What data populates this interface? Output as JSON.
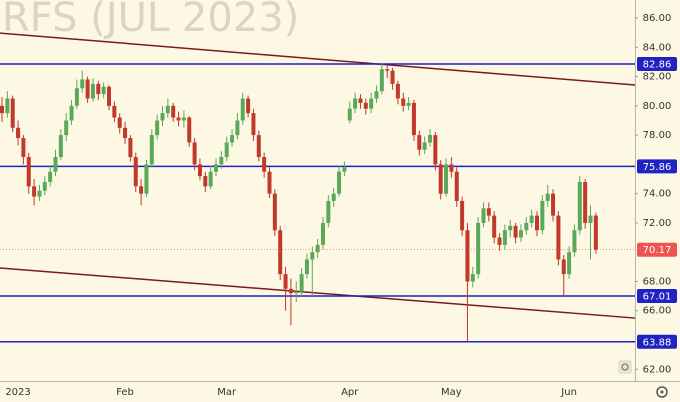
{
  "chart_data": {
    "type": "candlestick",
    "title": "RFS (JUL 2023)",
    "categories": [
      null,
      null,
      null,
      "2023",
      null,
      null,
      null,
      null,
      null,
      null,
      null,
      null,
      null,
      null,
      null,
      null,
      null,
      null,
      null,
      null,
      null,
      null,
      null,
      "Feb",
      null,
      null,
      null,
      null,
      null,
      null,
      null,
      null,
      null,
      null,
      null,
      null,
      null,
      null,
      null,
      null,
      null,
      null,
      "Mar",
      null,
      null,
      null,
      null,
      null,
      null,
      null,
      null,
      null,
      null,
      null,
      null,
      null,
      null,
      null,
      null,
      null,
      null,
      null,
      null,
      null,
      null,
      "Apr",
      null,
      null,
      null,
      null,
      null,
      null,
      null,
      null,
      null,
      null,
      null,
      null,
      null,
      null,
      null,
      null,
      null,
      null,
      "May",
      null,
      null,
      null,
      null,
      null,
      null,
      null,
      null,
      null,
      null,
      null,
      null,
      null,
      null,
      null,
      null,
      null,
      null,
      null,
      null,
      null,
      "Jun",
      null,
      null,
      null,
      null,
      null
    ],
    "ohlc": [
      [
        80.0,
        80.6,
        78.9,
        79.5
      ],
      [
        79.5,
        81.0,
        79.2,
        80.5
      ],
      [
        80.5,
        80.7,
        78.2,
        78.5
      ],
      [
        78.5,
        79.0,
        77.3,
        77.8
      ],
      [
        77.8,
        78.0,
        76.0,
        76.5
      ],
      [
        76.5,
        76.8,
        74.0,
        74.5
      ],
      [
        74.5,
        75.0,
        73.2,
        73.8
      ],
      [
        73.8,
        74.6,
        73.5,
        74.2
      ],
      [
        74.2,
        75.2,
        73.9,
        74.8
      ],
      [
        74.8,
        75.9,
        74.5,
        75.5
      ],
      [
        75.5,
        77.0,
        75.2,
        76.5
      ],
      [
        76.5,
        78.4,
        76.3,
        78.0
      ],
      [
        78.0,
        79.5,
        77.6,
        79.0
      ],
      [
        79.0,
        80.4,
        78.7,
        80.0
      ],
      [
        80.0,
        81.8,
        79.8,
        81.2
      ],
      [
        81.2,
        82.4,
        80.9,
        81.8
      ],
      [
        81.8,
        82.0,
        80.2,
        80.5
      ],
      [
        80.5,
        81.9,
        80.3,
        81.5
      ],
      [
        81.5,
        81.7,
        80.4,
        80.8
      ],
      [
        80.8,
        81.6,
        80.5,
        81.3
      ],
      [
        81.3,
        81.4,
        79.7,
        80.0
      ],
      [
        80.0,
        80.3,
        78.9,
        79.2
      ],
      [
        79.2,
        79.5,
        78.1,
        78.5
      ],
      [
        78.5,
        78.9,
        77.4,
        77.8
      ],
      [
        77.8,
        78.0,
        76.2,
        76.5
      ],
      [
        76.5,
        76.8,
        74.1,
        74.5
      ],
      [
        74.5,
        75.0,
        73.2,
        74.0
      ],
      [
        74.0,
        76.3,
        73.8,
        76.0
      ],
      [
        76.0,
        78.4,
        75.8,
        78.0
      ],
      [
        78.0,
        79.4,
        77.7,
        79.0
      ],
      [
        79.0,
        80.0,
        78.6,
        79.5
      ],
      [
        79.5,
        80.5,
        79.2,
        80.0
      ],
      [
        80.0,
        80.2,
        78.9,
        79.2
      ],
      [
        79.2,
        79.6,
        78.6,
        79.0
      ],
      [
        79.0,
        79.7,
        78.5,
        79.2
      ],
      [
        79.2,
        79.3,
        77.2,
        77.5
      ],
      [
        77.5,
        77.8,
        75.6,
        76.0
      ],
      [
        76.0,
        76.4,
        74.9,
        75.2
      ],
      [
        75.2,
        75.5,
        74.1,
        74.5
      ],
      [
        74.5,
        75.9,
        74.3,
        75.5
      ],
      [
        75.5,
        76.4,
        75.2,
        76.0
      ],
      [
        76.0,
        76.9,
        75.7,
        76.5
      ],
      [
        76.5,
        77.9,
        76.2,
        77.5
      ],
      [
        77.5,
        78.4,
        77.2,
        78.0
      ],
      [
        78.0,
        79.5,
        77.7,
        79.0
      ],
      [
        79.0,
        80.9,
        78.7,
        80.5
      ],
      [
        80.5,
        80.7,
        79.2,
        79.5
      ],
      [
        79.5,
        79.8,
        77.6,
        78.0
      ],
      [
        78.0,
        78.3,
        76.2,
        76.5
      ],
      [
        76.5,
        76.8,
        75.1,
        75.5
      ],
      [
        75.5,
        75.8,
        73.7,
        74.0
      ],
      [
        74.0,
        74.3,
        71.1,
        71.5
      ],
      [
        71.5,
        71.8,
        68.1,
        68.5
      ],
      [
        68.5,
        69.0,
        66.0,
        67.5
      ],
      [
        67.5,
        68.2,
        65.0,
        67.2
      ],
      [
        67.2,
        68.0,
        66.6,
        67.3
      ],
      [
        67.3,
        68.9,
        67.0,
        68.5
      ],
      [
        68.5,
        69.9,
        68.2,
        69.5
      ],
      [
        69.5,
        70.4,
        67.0,
        70.0
      ],
      [
        70.0,
        70.9,
        69.6,
        70.5
      ],
      [
        70.5,
        72.4,
        70.2,
        72.0
      ],
      [
        72.0,
        73.9,
        71.7,
        73.5
      ],
      [
        73.5,
        74.4,
        73.1,
        74.0
      ],
      [
        74.0,
        75.9,
        73.8,
        75.5
      ],
      [
        75.5,
        76.2,
        75.2,
        75.8
      ],
      [
        79.0,
        80.3,
        78.8,
        79.8
      ],
      [
        79.8,
        80.9,
        79.5,
        80.5
      ],
      [
        80.5,
        80.8,
        79.8,
        80.2
      ],
      [
        80.2,
        80.5,
        79.4,
        79.8
      ],
      [
        79.8,
        80.9,
        79.5,
        80.5
      ],
      [
        80.5,
        81.4,
        80.2,
        81.0
      ],
      [
        81.0,
        82.9,
        80.8,
        82.5
      ],
      [
        82.5,
        82.8,
        81.9,
        82.4
      ],
      [
        82.4,
        82.6,
        81.1,
        81.5
      ],
      [
        81.5,
        81.7,
        80.1,
        80.5
      ],
      [
        80.5,
        80.9,
        79.6,
        80.0
      ],
      [
        80.0,
        80.6,
        79.7,
        80.2
      ],
      [
        80.2,
        80.4,
        77.6,
        78.0
      ],
      [
        78.0,
        78.3,
        76.6,
        77.0
      ],
      [
        77.0,
        77.9,
        76.7,
        77.5
      ],
      [
        77.5,
        78.4,
        77.2,
        78.0
      ],
      [
        78.0,
        78.2,
        75.6,
        76.0
      ],
      [
        76.0,
        76.3,
        73.6,
        74.0
      ],
      [
        74.0,
        76.4,
        73.8,
        76.0
      ],
      [
        76.0,
        76.5,
        75.1,
        75.5
      ],
      [
        75.5,
        75.8,
        73.1,
        73.5
      ],
      [
        73.5,
        73.8,
        71.1,
        71.5
      ],
      [
        71.5,
        72.0,
        63.9,
        68.0
      ],
      [
        68.0,
        69.0,
        67.6,
        68.5
      ],
      [
        68.5,
        72.4,
        68.2,
        72.0
      ],
      [
        72.0,
        73.4,
        71.7,
        73.0
      ],
      [
        73.0,
        73.4,
        72.1,
        72.5
      ],
      [
        72.5,
        72.8,
        70.6,
        71.0
      ],
      [
        71.0,
        71.3,
        70.1,
        70.5
      ],
      [
        70.5,
        71.9,
        70.2,
        71.5
      ],
      [
        71.5,
        72.2,
        71.0,
        71.8
      ],
      [
        71.8,
        72.0,
        70.6,
        71.0
      ],
      [
        71.0,
        71.9,
        70.7,
        71.5
      ],
      [
        71.5,
        72.4,
        71.2,
        72.0
      ],
      [
        72.0,
        72.9,
        71.7,
        72.5
      ],
      [
        72.5,
        72.8,
        71.1,
        71.5
      ],
      [
        71.5,
        73.9,
        71.2,
        73.5
      ],
      [
        73.5,
        74.6,
        73.1,
        74.0
      ],
      [
        74.0,
        74.3,
        72.1,
        72.5
      ],
      [
        72.5,
        72.8,
        69.1,
        69.5
      ],
      [
        69.5,
        69.8,
        67.0,
        68.5
      ],
      [
        68.5,
        70.4,
        68.2,
        70.0
      ],
      [
        70.0,
        71.9,
        69.7,
        71.5
      ],
      [
        71.5,
        75.2,
        71.2,
        74.8
      ],
      [
        74.8,
        75.0,
        71.6,
        72.0
      ],
      [
        72.0,
        73.2,
        69.5,
        72.5
      ],
      [
        72.5,
        72.7,
        69.9,
        70.17
      ]
    ],
    "up_color": "#5aa95a",
    "down_color": "#c0392b",
    "levels": [
      82.86,
      75.86,
      67.01,
      63.88
    ],
    "level_color": "#1f23c2",
    "trendlines": [
      {
        "start": 84.97,
        "end": 81.42
      },
      {
        "start": 68.92,
        "end": 65.5
      }
    ],
    "trendline_color": "#7a1a1a",
    "ylim": [
      61.2,
      87.23
    ],
    "yticks": [
      {
        "value": 86,
        "label": "86.00"
      },
      {
        "value": 84,
        "label": "84.00"
      },
      {
        "value": 82,
        "label": "82.00"
      },
      {
        "value": 80,
        "label": "80.00"
      },
      {
        "value": 78,
        "label": "78.00"
      },
      {
        "value": 74,
        "label": "74.00"
      },
      {
        "value": 72,
        "label": "72.00"
      },
      {
        "value": 68,
        "label": "68.00"
      },
      {
        "value": 66,
        "label": "66.00"
      },
      {
        "value": 62,
        "label": "62.00"
      }
    ],
    "last_price_color": "#ef5350"
  }
}
